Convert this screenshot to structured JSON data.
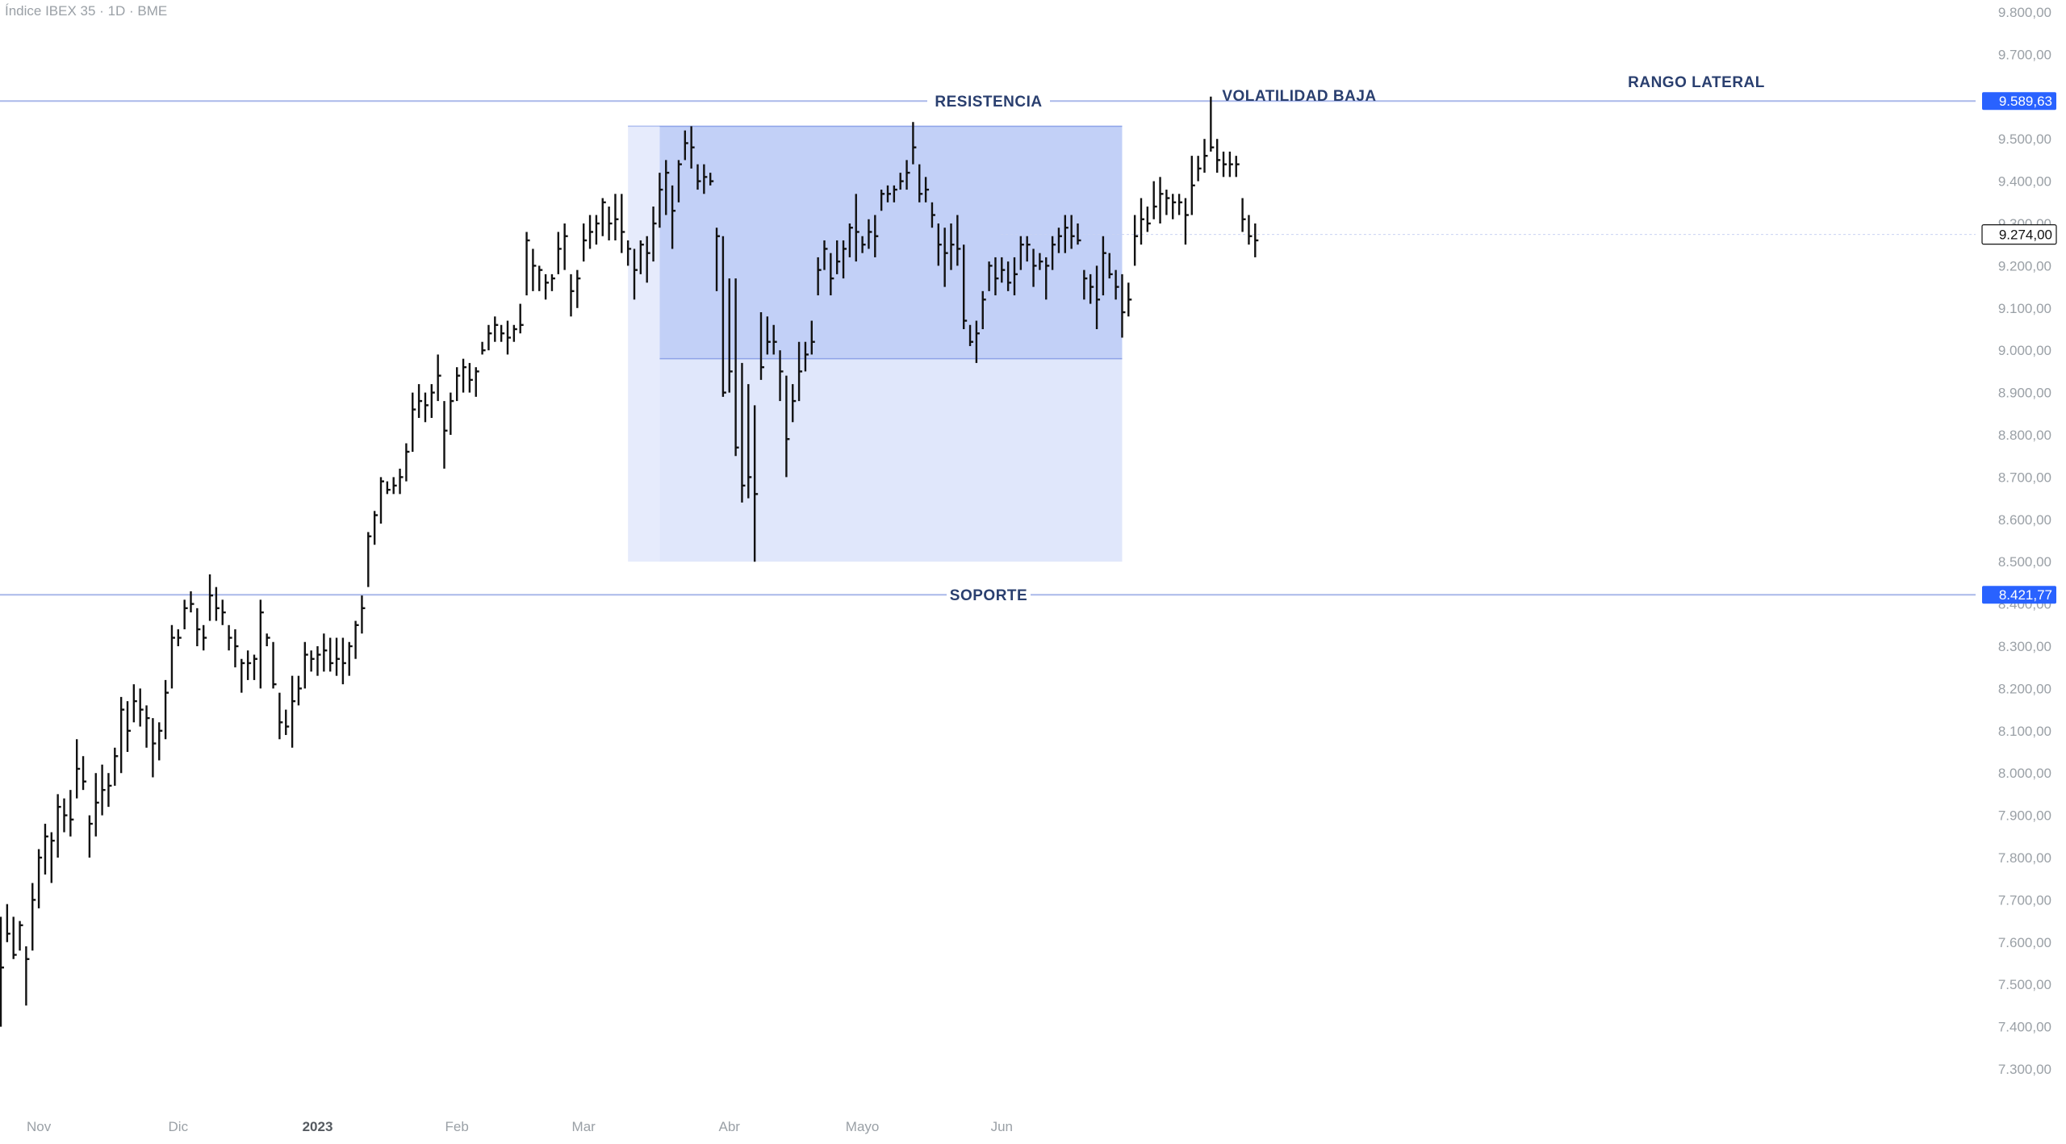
{
  "header": {
    "title": "Índice IBEX 35 · 1D · BME"
  },
  "colors": {
    "bar": "#111111",
    "support_resistance": "#aab8ea",
    "range_fill": "#b8c8f5",
    "low_vol_fill": "#dde4fb",
    "label_text": "#2a3f6f",
    "price_tag": "#2962ff",
    "axis_text": "#9aa0a6"
  },
  "chart_data": {
    "type": "ohlc",
    "title": "Índice IBEX 35 · 1D · BME",
    "ylim": [
      7220,
      9820
    ],
    "y_ticks": [
      "7.300,00",
      "7.400,00",
      "7.500,00",
      "7.600,00",
      "7.700,00",
      "7.800,00",
      "7.900,00",
      "8.000,00",
      "8.100,00",
      "8.200,00",
      "8.300,00",
      "8.400,00",
      "8.500,00",
      "8.600,00",
      "8.700,00",
      "8.800,00",
      "8.900,00",
      "9.000,00",
      "9.100,00",
      "9.200,00",
      "9.300,00",
      "9.400,00",
      "9.500,00",
      "9.600,00",
      "9.700,00",
      "9.800,00"
    ],
    "x_ticks": [
      {
        "label": "Nov",
        "date": "2022-11-01",
        "bold": false
      },
      {
        "label": "Dic",
        "date": "2022-12-01",
        "bold": false
      },
      {
        "label": "2023",
        "date": "2023-01-02",
        "bold": true
      },
      {
        "label": "Feb",
        "date": "2023-02-01",
        "bold": false
      },
      {
        "label": "Mar",
        "date": "2023-03-01",
        "bold": false
      },
      {
        "label": "Abr",
        "date": "2023-04-03",
        "bold": false
      },
      {
        "label": "Mayo",
        "date": "2023-05-02",
        "bold": false
      },
      {
        "label": "Jun",
        "date": "2023-06-01",
        "bold": false
      }
    ],
    "levels": [
      {
        "name": "RESISTENCIA",
        "value": 9589.63,
        "tag": "9.589,63"
      },
      {
        "name": "SOPORTE",
        "value": 8421.77,
        "tag": "8.421,77"
      }
    ],
    "last_price": {
      "value": 9274.0,
      "tag": "9.274,00"
    },
    "zones": [
      {
        "label": "VOLATILIDAD BAJA",
        "kind": "low_volatility",
        "from": "2023-03-17",
        "to": "2023-06-28",
        "y_top": 9530,
        "y_bottom": 8500
      },
      {
        "label": "RANGO LATERAL",
        "kind": "range",
        "from": "2023-03-17",
        "to": "2023-06-28",
        "y_top": 9530,
        "y_bottom": 8980
      },
      {
        "label": "",
        "kind": "pre_volatility",
        "from": "2023-03-10",
        "to": "2023-03-17",
        "y_top": 9530,
        "y_bottom": 8500
      }
    ],
    "bars_start": "2022-10-24",
    "bars": [
      [
        7660,
        7400,
        7540
      ],
      [
        7690,
        7600,
        7620
      ],
      [
        7660,
        7560,
        7570
      ],
      [
        7650,
        7580,
        7640
      ],
      [
        7590,
        7450,
        7560
      ],
      [
        7740,
        7580,
        7700
      ],
      [
        7820,
        7680,
        7800
      ],
      [
        7880,
        7760,
        7850
      ],
      [
        7860,
        7740,
        7840
      ],
      [
        7950,
        7800,
        7920
      ],
      [
        7940,
        7860,
        7900
      ],
      [
        7960,
        7850,
        7890
      ],
      [
        8080,
        7940,
        8010
      ],
      [
        8040,
        7960,
        7980
      ],
      [
        7900,
        7800,
        7880
      ],
      [
        8000,
        7850,
        7930
      ],
      [
        8020,
        7900,
        7960
      ],
      [
        8000,
        7920,
        7970
      ],
      [
        8060,
        7970,
        8040
      ],
      [
        8180,
        8000,
        8150
      ],
      [
        8170,
        8050,
        8100
      ],
      [
        8210,
        8120,
        8170
      ],
      [
        8200,
        8110,
        8150
      ],
      [
        8160,
        8060,
        8130
      ],
      [
        8130,
        7990,
        8070
      ],
      [
        8120,
        8030,
        8100
      ],
      [
        8220,
        8080,
        8190
      ],
      [
        8350,
        8200,
        8320
      ],
      [
        8340,
        8300,
        8320
      ],
      [
        8410,
        8340,
        8390
      ],
      [
        8430,
        8380,
        8400
      ],
      [
        8390,
        8300,
        8340
      ],
      [
        8350,
        8290,
        8320
      ],
      [
        8470,
        8360,
        8420
      ],
      [
        8440,
        8360,
        8390
      ],
      [
        8410,
        8350,
        8380
      ],
      [
        8350,
        8290,
        8320
      ],
      [
        8340,
        8250,
        8300
      ],
      [
        8270,
        8190,
        8260
      ],
      [
        8290,
        8220,
        8260
      ],
      [
        8280,
        8220,
        8270
      ],
      [
        8410,
        8200,
        8380
      ],
      [
        8330,
        8300,
        8320
      ],
      [
        8310,
        8200,
        8210
      ],
      [
        8190,
        8080,
        8120
      ],
      [
        8150,
        8090,
        8110
      ],
      [
        8230,
        8060,
        8170
      ],
      [
        8230,
        8160,
        8200
      ],
      [
        8310,
        8200,
        8280
      ],
      [
        8290,
        8240,
        8270
      ],
      [
        8300,
        8230,
        8280
      ],
      [
        8330,
        8240,
        8290
      ],
      [
        8320,
        8240,
        8260
      ],
      [
        8320,
        8230,
        8270
      ],
      [
        8320,
        8210,
        8260
      ],
      [
        8310,
        8230,
        8300
      ],
      [
        8360,
        8270,
        8350
      ],
      [
        8420,
        8330,
        8390
      ],
      [
        8570,
        8440,
        8560
      ],
      [
        8620,
        8540,
        8610
      ],
      [
        8700,
        8590,
        8690
      ],
      [
        8690,
        8660,
        8670
      ],
      [
        8700,
        8660,
        8680
      ],
      [
        8720,
        8660,
        8700
      ],
      [
        8780,
        8690,
        8760
      ],
      [
        8900,
        8760,
        8860
      ],
      [
        8920,
        8840,
        8880
      ],
      [
        8900,
        8830,
        8870
      ],
      [
        8920,
        8840,
        8900
      ],
      [
        8990,
        8880,
        8940
      ],
      [
        8880,
        8720,
        8810
      ],
      [
        8900,
        8800,
        8880
      ],
      [
        8960,
        8880,
        8940
      ],
      [
        8980,
        8900,
        8960
      ],
      [
        8970,
        8900,
        8930
      ],
      [
        8960,
        8890,
        8950
      ],
      [
        9020,
        8990,
        9000
      ],
      [
        9060,
        9000,
        9040
      ],
      [
        9080,
        9020,
        9060
      ],
      [
        9060,
        9020,
        9040
      ],
      [
        9070,
        8990,
        9030
      ],
      [
        9060,
        9020,
        9050
      ],
      [
        9110,
        9040,
        9060
      ],
      [
        9280,
        9130,
        9260
      ],
      [
        9240,
        9140,
        9200
      ],
      [
        9200,
        9140,
        9190
      ],
      [
        9180,
        9120,
        9160
      ],
      [
        9180,
        9140,
        9170
      ],
      [
        9280,
        9180,
        9240
      ],
      [
        9300,
        9190,
        9270
      ],
      [
        9180,
        9080,
        9140
      ],
      [
        9190,
        9100,
        9170
      ],
      [
        9300,
        9210,
        9260
      ],
      [
        9320,
        9240,
        9280
      ],
      [
        9320,
        9250,
        9300
      ],
      [
        9360,
        9270,
        9350
      ],
      [
        9340,
        9260,
        9300
      ],
      [
        9370,
        9260,
        9310
      ],
      [
        9370,
        9230,
        9280
      ],
      [
        9260,
        9200,
        9240
      ],
      [
        9240,
        9120,
        9190
      ],
      [
        9260,
        9180,
        9250
      ],
      [
        9270,
        9160,
        9230
      ],
      [
        9340,
        9210,
        9300
      ],
      [
        9420,
        9290,
        9380
      ],
      [
        9450,
        9320,
        9420
      ],
      [
        9390,
        9240,
        9330
      ],
      [
        9450,
        9350,
        9440
      ],
      [
        9520,
        9450,
        9490
      ],
      [
        9530,
        9430,
        9480
      ],
      [
        9440,
        9380,
        9400
      ],
      [
        9440,
        9370,
        9410
      ],
      [
        9420,
        9390,
        9400
      ],
      [
        9290,
        9140,
        9270
      ],
      [
        9270,
        8890,
        8900
      ],
      [
        9170,
        8900,
        8950
      ],
      [
        9170,
        8750,
        8770
      ],
      [
        8970,
        8640,
        8680
      ],
      [
        8920,
        8650,
        8700
      ],
      [
        8870,
        8500,
        8660
      ],
      [
        9090,
        8930,
        8960
      ],
      [
        9080,
        8990,
        9020
      ],
      [
        9060,
        8990,
        9020
      ],
      [
        9000,
        8880,
        8950
      ],
      [
        8940,
        8700,
        8790
      ],
      [
        8920,
        8830,
        8880
      ],
      [
        9020,
        8880,
        8950
      ],
      [
        9020,
        8950,
        8990
      ],
      [
        9070,
        8990,
        9020
      ],
      [
        9220,
        9130,
        9190
      ],
      [
        9260,
        9190,
        9240
      ],
      [
        9230,
        9130,
        9170
      ],
      [
        9260,
        9180,
        9210
      ],
      [
        9260,
        9170,
        9240
      ],
      [
        9300,
        9220,
        9290
      ],
      [
        9370,
        9210,
        9280
      ],
      [
        9270,
        9230,
        9250
      ],
      [
        9310,
        9240,
        9280
      ],
      [
        9320,
        9220,
        9270
      ],
      [
        9380,
        9330,
        9370
      ],
      [
        9390,
        9350,
        9370
      ],
      [
        9390,
        9350,
        9380
      ],
      [
        9420,
        9380,
        9400
      ],
      [
        9450,
        9380,
        9420
      ],
      [
        9540,
        9440,
        9480
      ],
      [
        9440,
        9350,
        9370
      ],
      [
        9410,
        9350,
        9380
      ],
      [
        9350,
        9290,
        9320
      ],
      [
        9300,
        9200,
        9250
      ],
      [
        9290,
        9150,
        9230
      ],
      [
        9300,
        9190,
        9250
      ],
      [
        9320,
        9200,
        9240
      ],
      [
        9250,
        9050,
        9070
      ],
      [
        9060,
        9010,
        9020
      ],
      [
        9070,
        8970,
        9040
      ],
      [
        9140,
        9050,
        9120
      ],
      [
        9210,
        9140,
        9200
      ],
      [
        9220,
        9130,
        9170
      ],
      [
        9220,
        9160,
        9190
      ],
      [
        9210,
        9140,
        9160
      ],
      [
        9220,
        9130,
        9180
      ],
      [
        9270,
        9190,
        9250
      ],
      [
        9270,
        9210,
        9250
      ],
      [
        9240,
        9150,
        9200
      ],
      [
        9230,
        9190,
        9210
      ],
      [
        9220,
        9120,
        9200
      ],
      [
        9270,
        9190,
        9250
      ],
      [
        9290,
        9230,
        9270
      ],
      [
        9320,
        9230,
        9290
      ],
      [
        9320,
        9240,
        9270
      ],
      [
        9300,
        9250,
        9260
      ],
      [
        9190,
        9120,
        9170
      ],
      [
        9180,
        9110,
        9150
      ],
      [
        9200,
        9050,
        9120
      ],
      [
        9270,
        9130,
        9230
      ],
      [
        9230,
        9170,
        9180
      ],
      [
        9190,
        9120,
        9150
      ],
      [
        9180,
        9030,
        9090
      ],
      [
        9160,
        9080,
        9120
      ],
      [
        9320,
        9200,
        9270
      ],
      [
        9360,
        9250,
        9310
      ],
      [
        9340,
        9280,
        9300
      ],
      [
        9400,
        9310,
        9340
      ],
      [
        9410,
        9300,
        9370
      ],
      [
        9380,
        9320,
        9360
      ],
      [
        9370,
        9310,
        9350
      ],
      [
        9370,
        9320,
        9350
      ],
      [
        9360,
        9250,
        9320
      ],
      [
        9460,
        9320,
        9390
      ],
      [
        9460,
        9400,
        9430
      ],
      [
        9500,
        9420,
        9460
      ],
      [
        9600,
        9470,
        9480
      ],
      [
        9500,
        9420,
        9450
      ],
      [
        9470,
        9410,
        9440
      ],
      [
        9470,
        9410,
        9440
      ],
      [
        9460,
        9410,
        9440
      ],
      [
        9360,
        9280,
        9310
      ],
      [
        9320,
        9250,
        9270
      ],
      [
        9300,
        9220,
        9260
      ]
    ]
  }
}
